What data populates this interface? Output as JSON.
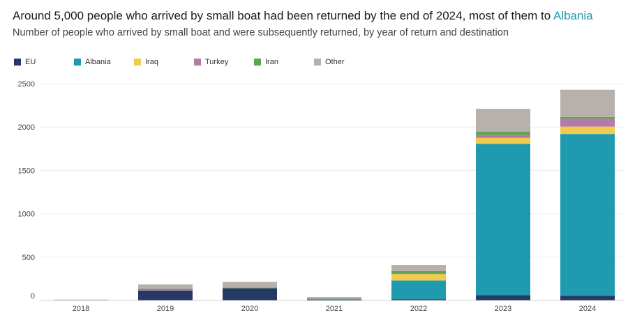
{
  "header": {
    "title_main": "Around 5,000 people who arrived by small boat had been returned by the end of 2024, most of them to ",
    "title_highlight": "Albania",
    "subtitle": "Number of people who arrived by small boat and were subsequently returned, by year of return and destination"
  },
  "colors": {
    "EU": "#263866",
    "Albania": "#1f9aae",
    "Iraq": "#f1cb4c",
    "Turkey": "#b57aa8",
    "Iran": "#5aa652",
    "Other": "#b8b0aa",
    "highlight": "#1f9aae"
  },
  "chart_data": {
    "type": "bar",
    "stacked": true,
    "title": "Around 5,000 people who arrived by small boat had been returned by the end of 2024, most of them to Albania",
    "subtitle": "Number of people who arrived by small boat and were subsequently returned, by year of return and destination",
    "xlabel": "",
    "ylabel": "",
    "ylim": [
      0,
      2500
    ],
    "yticks": [
      0,
      500,
      1000,
      1500,
      2000,
      2500
    ],
    "grid": true,
    "legend_position": "top-left",
    "categories": [
      "2018",
      "2019",
      "2020",
      "2021",
      "2022",
      "2023",
      "2024"
    ],
    "series": [
      {
        "name": "EU",
        "values": [
          5,
          115,
          140,
          10,
          15,
          60,
          55
        ]
      },
      {
        "name": "Albania",
        "values": [
          0,
          0,
          0,
          5,
          215,
          1745,
          1865
        ]
      },
      {
        "name": "Iraq",
        "values": [
          0,
          0,
          0,
          0,
          75,
          70,
          85
        ]
      },
      {
        "name": "Turkey",
        "values": [
          0,
          5,
          0,
          0,
          5,
          35,
          90
        ]
      },
      {
        "name": "Iran",
        "values": [
          0,
          15,
          10,
          5,
          30,
          35,
          20
        ]
      },
      {
        "name": "Other",
        "values": [
          5,
          50,
          65,
          20,
          70,
          265,
          315
        ]
      }
    ]
  }
}
